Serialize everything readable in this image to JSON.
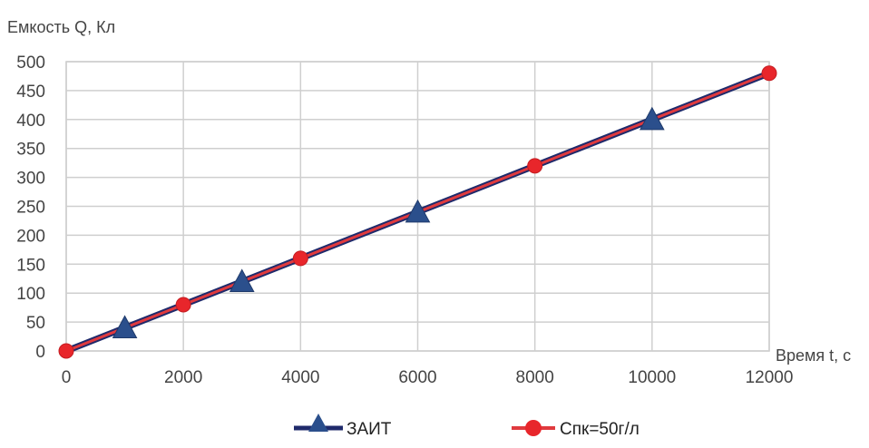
{
  "chart_data": {
    "type": "line",
    "ylabel": "Емкость Q, Кл",
    "xlabel": "Время t, с",
    "xlim": [
      0,
      12000
    ],
    "ylim": [
      0,
      500
    ],
    "x_ticks": [
      "0",
      "2000",
      "4000",
      "6000",
      "8000",
      "10000",
      "12000"
    ],
    "y_ticks": [
      "0",
      "50",
      "100",
      "150",
      "200",
      "250",
      "300",
      "350",
      "400",
      "450",
      "500"
    ],
    "grid": true,
    "legend_position": "bottom",
    "series": [
      {
        "name": "ЗАИТ",
        "color": "#1f2a6b",
        "marker": "triangle",
        "marker_color": "#2b4f8c",
        "x": [
          0,
          1000,
          3000,
          6000,
          10000
        ],
        "y": [
          0,
          40,
          120,
          240,
          400
        ]
      },
      {
        "name": "Cпк=50г/л",
        "color": "#e03a3e",
        "marker": "circle",
        "marker_color": "#e8262b",
        "x": [
          0,
          2000,
          4000,
          8000,
          12000
        ],
        "y": [
          0,
          80,
          160,
          320,
          480
        ]
      }
    ]
  }
}
